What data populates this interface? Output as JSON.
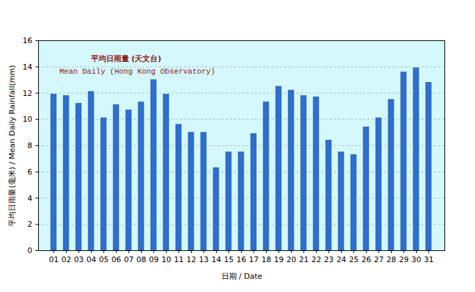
{
  "chart_data": {
    "type": "bar",
    "title": "平均日雨量 (天文台)",
    "subtitle": "Mean Daily (Hong Kong Observatory)",
    "x_label": "日期 / Date",
    "y_label": "平均日雨量(毫米) / Mean Daily Rainfall(mm)",
    "categories": [
      "01",
      "02",
      "03",
      "04",
      "05",
      "06",
      "07",
      "08",
      "09",
      "10",
      "11",
      "12",
      "13",
      "14",
      "15",
      "16",
      "17",
      "18",
      "19",
      "20",
      "21",
      "22",
      "23",
      "24",
      "25",
      "26",
      "27",
      "28",
      "29",
      "30",
      "31"
    ],
    "values": [
      11.9,
      11.8,
      11.2,
      12.1,
      10.1,
      11.1,
      10.7,
      11.3,
      13.0,
      11.9,
      9.6,
      9.0,
      9.0,
      6.3,
      7.5,
      7.5,
      8.9,
      11.3,
      12.5,
      12.2,
      11.8,
      11.7,
      8.4,
      7.5,
      7.3,
      9.4,
      10.1,
      11.5,
      13.6,
      13.9,
      12.8
    ],
    "color": "#2f6fd0",
    "ylim": [
      0,
      16
    ],
    "yticks": [
      0,
      2,
      4,
      6,
      8,
      10,
      12,
      14,
      16
    ],
    "grid": true
  }
}
